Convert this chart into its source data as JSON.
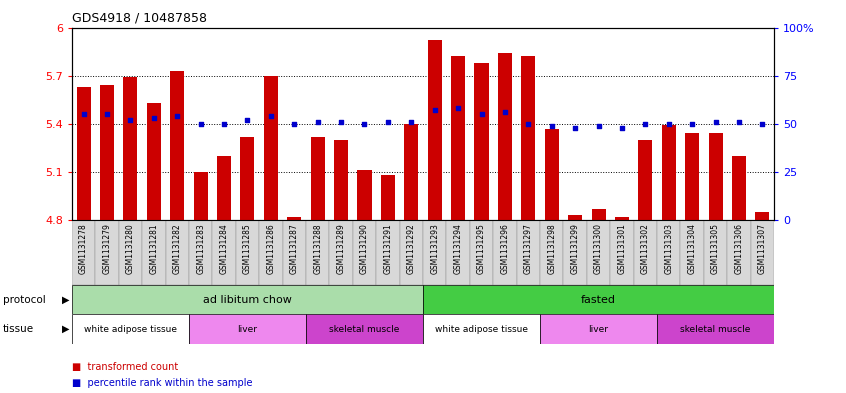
{
  "title": "GDS4918 / 10487858",
  "bar_color": "#cc0000",
  "dot_color": "#0000cc",
  "ylim_left": [
    4.8,
    6.0
  ],
  "ylim_right": [
    0,
    100
  ],
  "yticks_left": [
    4.8,
    5.1,
    5.4,
    5.7,
    6.0
  ],
  "yticks_right": [
    0,
    25,
    50,
    75,
    100
  ],
  "ytick_labels_left": [
    "4.8",
    "5.1",
    "5.4",
    "5.7",
    "6"
  ],
  "ytick_labels_right": [
    "0",
    "25",
    "50",
    "75",
    "100%"
  ],
  "hlines": [
    5.1,
    5.4,
    5.7
  ],
  "samples": [
    "GSM1131278",
    "GSM1131279",
    "GSM1131280",
    "GSM1131281",
    "GSM1131282",
    "GSM1131283",
    "GSM1131284",
    "GSM1131285",
    "GSM1131286",
    "GSM1131287",
    "GSM1131288",
    "GSM1131289",
    "GSM1131290",
    "GSM1131291",
    "GSM1131292",
    "GSM1131293",
    "GSM1131294",
    "GSM1131295",
    "GSM1131296",
    "GSM1131297",
    "GSM1131298",
    "GSM1131299",
    "GSM1131300",
    "GSM1131301",
    "GSM1131302",
    "GSM1131303",
    "GSM1131304",
    "GSM1131305",
    "GSM1131306",
    "GSM1131307"
  ],
  "bar_values": [
    5.63,
    5.64,
    5.69,
    5.53,
    5.73,
    5.1,
    5.2,
    5.32,
    5.7,
    4.82,
    5.32,
    5.3,
    5.11,
    5.08,
    5.4,
    5.92,
    5.82,
    5.78,
    5.84,
    5.82,
    5.37,
    4.83,
    4.87,
    4.82,
    5.3,
    5.39,
    5.34,
    5.34,
    5.2,
    4.85
  ],
  "dot_values_pct": [
    55,
    55,
    52,
    53,
    54,
    50,
    50,
    52,
    54,
    50,
    51,
    51,
    50,
    51,
    51,
    57,
    58,
    55,
    56,
    50,
    49,
    48,
    49,
    48,
    50,
    50,
    50,
    51,
    51,
    50
  ],
  "protocol_groups": [
    {
      "label": "ad libitum chow",
      "start": 0,
      "end": 15,
      "color": "#aaddaa"
    },
    {
      "label": "fasted",
      "start": 15,
      "end": 30,
      "color": "#44cc44"
    }
  ],
  "tissue_groups": [
    {
      "label": "white adipose tissue",
      "start": 0,
      "end": 5,
      "color": "#ffffff"
    },
    {
      "label": "liver",
      "start": 5,
      "end": 10,
      "color": "#ee88ee"
    },
    {
      "label": "skeletal muscle",
      "start": 10,
      "end": 15,
      "color": "#cc44cc"
    },
    {
      "label": "white adipose tissue",
      "start": 15,
      "end": 20,
      "color": "#ffffff"
    },
    {
      "label": "liver",
      "start": 20,
      "end": 25,
      "color": "#ee88ee"
    },
    {
      "label": "skeletal muscle",
      "start": 25,
      "end": 30,
      "color": "#cc44cc"
    }
  ],
  "bg_color": "#ffffff",
  "plot_bg_color": "#ffffff",
  "xtick_bg_color": "#d8d8d8"
}
